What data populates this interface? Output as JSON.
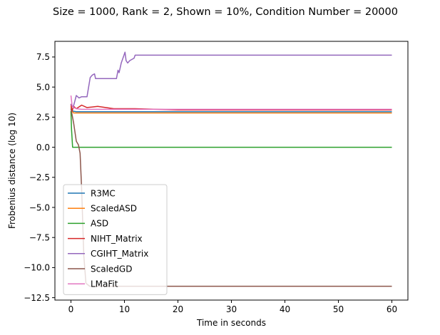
{
  "chart_data": {
    "type": "line",
    "title": "Size = 1000, Rank = 2, Shown = 10%, Condition Number = 20000",
    "xlabel": "Time in seconds",
    "ylabel": "Frobenius distance (log 10)",
    "xlim": [
      -3,
      63
    ],
    "ylim": [
      -12.7,
      8.8
    ],
    "xticks": [
      0,
      10,
      20,
      30,
      40,
      50,
      60
    ],
    "xtick_labels": [
      "0",
      "10",
      "20",
      "30",
      "40",
      "50",
      "60"
    ],
    "yticks": [
      7.5,
      5.0,
      2.5,
      0.0,
      -2.5,
      -5.0,
      -7.5,
      -10.0,
      -12.5
    ],
    "ytick_labels": [
      "7.5",
      "5.0",
      "2.5",
      "0.0",
      "−2.5",
      "−5.0",
      "−7.5",
      "−10.0",
      "−12.5"
    ],
    "grid": false,
    "legend_position": "lower-left",
    "series": [
      {
        "name": "R3MC",
        "color": "#1f77b4",
        "x": [
          0,
          0.3,
          1,
          2,
          60
        ],
        "y": [
          3.3,
          3.0,
          2.95,
          2.95,
          2.95
        ]
      },
      {
        "name": "ScaledASD",
        "color": "#ff7f0e",
        "x": [
          0,
          0.2,
          0.5,
          2,
          60
        ],
        "y": [
          3.4,
          3.0,
          2.85,
          2.85,
          2.85
        ]
      },
      {
        "name": "ASD",
        "color": "#2ca02c",
        "x": [
          0,
          0.1,
          0.3,
          60
        ],
        "y": [
          3.0,
          1.5,
          0.0,
          0.0
        ]
      },
      {
        "name": "NIHT_Matrix",
        "color": "#d62728",
        "x": [
          0,
          0.2,
          0.5,
          1,
          2,
          3,
          5,
          8,
          12,
          20,
          60
        ],
        "y": [
          3.6,
          3.0,
          3.4,
          3.2,
          3.5,
          3.3,
          3.4,
          3.2,
          3.2,
          3.1,
          3.1
        ]
      },
      {
        "name": "CGIHT_Matrix",
        "color": "#9467bd",
        "x": [
          0,
          0.4,
          0.7,
          1.0,
          1.5,
          2.0,
          3.0,
          3.6,
          4.0,
          4.4,
          4.6,
          8.5,
          8.8,
          9.0,
          9.4,
          9.8,
          10.1,
          10.3,
          10.6,
          11.0,
          11.8,
          12.0,
          60
        ],
        "y": [
          3.6,
          3.3,
          3.8,
          4.3,
          4.1,
          4.2,
          4.2,
          5.8,
          6.0,
          6.1,
          5.7,
          5.7,
          6.4,
          6.2,
          7.0,
          7.5,
          7.9,
          7.2,
          7.0,
          7.2,
          7.4,
          7.65,
          7.65
        ]
      },
      {
        "name": "ScaledGD",
        "color": "#8c564b",
        "x": [
          0,
          0.5,
          1.0,
          1.4,
          1.7,
          2.0,
          2.4,
          2.8,
          3.5,
          60
        ],
        "y": [
          3.2,
          2.0,
          0.5,
          0.2,
          -0.5,
          -3.5,
          -9.0,
          -11.3,
          -11.55,
          -11.55
        ]
      },
      {
        "name": "LMaFit",
        "color": "#e377c2",
        "x": [
          0,
          0.2,
          0.5,
          1,
          2,
          60
        ],
        "y": [
          4.3,
          3.5,
          3.3,
          3.2,
          3.15,
          3.15
        ]
      }
    ]
  }
}
